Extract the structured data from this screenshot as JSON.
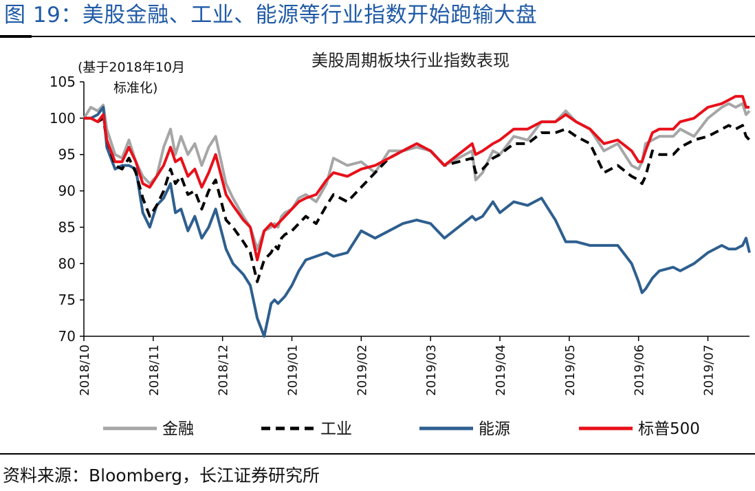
{
  "figure_title": "图 19：美股金融、工业、能源等行业指数开始跑输大盘",
  "source": "资料来源：Bloomberg，长江证券研究所",
  "colors": {
    "title": "#1f5aa6",
    "financials": "#a6a6a6",
    "industrials": "#000000",
    "energy": "#2e5f8f",
    "sp500": "#e8101a"
  },
  "chart_data": {
    "type": "line",
    "title": "美股周期板块行业指数表现",
    "note_line1": "(基于2018年10月",
    "note_line2": "标准化)",
    "xlabel": "",
    "ylabel": "",
    "ylim": [
      70,
      105
    ],
    "yticks": [
      "70",
      "75",
      "80",
      "85",
      "90",
      "95",
      "100",
      "105"
    ],
    "xlim": [
      0,
      9.6
    ],
    "xticks": [
      "2018/10",
      "2018/11",
      "2018/12",
      "2019/01",
      "2019/02",
      "2019/03",
      "2019/04",
      "2019/05",
      "2019/06",
      "2019/07"
    ],
    "series": [
      {
        "name": "金融",
        "style": "solid",
        "x": [
          0,
          0.1,
          0.2,
          0.28,
          0.33,
          0.45,
          0.55,
          0.65,
          0.75,
          0.85,
          0.95,
          1.05,
          1.15,
          1.25,
          1.32,
          1.4,
          1.5,
          1.6,
          1.7,
          1.8,
          1.9,
          2.05,
          2.15,
          2.3,
          2.4,
          2.5,
          2.6,
          2.7,
          2.75,
          2.8,
          2.85,
          2.9,
          3.0,
          3.1,
          3.2,
          3.35,
          3.5,
          3.6,
          3.8,
          4.0,
          4.2,
          4.4,
          4.6,
          4.8,
          5.0,
          5.2,
          5.4,
          5.6,
          5.65,
          5.75,
          5.9,
          6.0,
          6.2,
          6.4,
          6.6,
          6.8,
          6.95,
          7.1,
          7.3,
          7.5,
          7.7,
          7.9,
          8.0,
          8.05,
          8.1,
          8.2,
          8.3,
          8.5,
          8.6,
          8.8,
          9.0,
          9.2,
          9.3,
          9.4,
          9.5,
          9.55,
          9.6
        ],
        "values": [
          100,
          101.5,
          101,
          101.8,
          98.5,
          95,
          94.5,
          97,
          94,
          92,
          91,
          92,
          96,
          98.5,
          95,
          97.5,
          95,
          96.5,
          93.5,
          96,
          97.5,
          91,
          89,
          86.5,
          85,
          82,
          84.5,
          85,
          85.5,
          85,
          86.5,
          87,
          87.5,
          89,
          89.5,
          88.5,
          91,
          94.5,
          93.5,
          94,
          92.5,
          95.5,
          95.5,
          96,
          95.5,
          93.5,
          94.5,
          95.5,
          91.5,
          92.5,
          95.5,
          95,
          97.5,
          97,
          99.5,
          99.5,
          101,
          99.5,
          98.5,
          95.5,
          96.5,
          93.5,
          93,
          94,
          96.5,
          97,
          97.5,
          97.5,
          98.5,
          97.5,
          100,
          101.5,
          102,
          101.5,
          102,
          100.5,
          101
        ]
      },
      {
        "name": "工业",
        "style": "dashed",
        "x": [
          0,
          0.1,
          0.2,
          0.28,
          0.33,
          0.45,
          0.55,
          0.65,
          0.75,
          0.85,
          0.95,
          1.05,
          1.15,
          1.25,
          1.32,
          1.4,
          1.5,
          1.6,
          1.7,
          1.8,
          1.9,
          2.05,
          2.15,
          2.3,
          2.4,
          2.5,
          2.6,
          2.7,
          2.75,
          2.8,
          2.85,
          2.9,
          3.0,
          3.1,
          3.2,
          3.35,
          3.5,
          3.6,
          3.8,
          4.0,
          4.2,
          4.4,
          4.6,
          4.8,
          5.0,
          5.2,
          5.4,
          5.6,
          5.65,
          5.75,
          5.9,
          6.0,
          6.2,
          6.4,
          6.6,
          6.8,
          6.95,
          7.1,
          7.3,
          7.5,
          7.7,
          7.9,
          8.0,
          8.05,
          8.1,
          8.2,
          8.3,
          8.5,
          8.6,
          8.8,
          9.0,
          9.2,
          9.3,
          9.4,
          9.5,
          9.55,
          9.6
        ],
        "values": [
          100,
          100,
          99.5,
          100,
          97,
          93.5,
          93,
          94.5,
          92.5,
          89,
          86.5,
          88,
          90,
          93,
          91,
          92,
          89.5,
          90,
          87.5,
          90,
          91.5,
          86,
          85,
          83,
          81.5,
          77.5,
          80.5,
          81.5,
          82.5,
          82,
          83.5,
          84,
          84.5,
          85.5,
          86.5,
          85.5,
          88,
          89.5,
          88.5,
          90.5,
          92.5,
          94.5,
          95.5,
          96.5,
          95.5,
          93.5,
          94,
          94.5,
          92.5,
          93,
          94.5,
          95,
          96.5,
          96.5,
          98,
          98,
          98.5,
          97.5,
          96.5,
          92.5,
          93.5,
          92,
          91.5,
          91,
          92,
          95.5,
          95,
          95,
          96,
          97,
          97.5,
          98.5,
          99,
          98.5,
          99,
          97.5,
          97
        ]
      },
      {
        "name": "能源",
        "style": "solid",
        "x": [
          0,
          0.1,
          0.2,
          0.28,
          0.33,
          0.45,
          0.55,
          0.65,
          0.75,
          0.85,
          0.95,
          1.05,
          1.15,
          1.25,
          1.32,
          1.4,
          1.5,
          1.6,
          1.7,
          1.8,
          1.9,
          2.05,
          2.15,
          2.3,
          2.4,
          2.5,
          2.6,
          2.7,
          2.75,
          2.8,
          2.85,
          2.9,
          3.0,
          3.1,
          3.2,
          3.35,
          3.5,
          3.6,
          3.8,
          4.0,
          4.2,
          4.4,
          4.6,
          4.8,
          5.0,
          5.2,
          5.4,
          5.6,
          5.65,
          5.75,
          5.9,
          6.0,
          6.2,
          6.4,
          6.6,
          6.8,
          6.95,
          7.1,
          7.3,
          7.5,
          7.7,
          7.9,
          8.0,
          8.05,
          8.1,
          8.2,
          8.3,
          8.5,
          8.6,
          8.8,
          9.0,
          9.2,
          9.3,
          9.4,
          9.5,
          9.55,
          9.6
        ],
        "values": [
          100,
          100,
          100.5,
          101.5,
          96,
          93,
          93.5,
          93.5,
          93,
          87,
          85,
          88,
          89,
          91,
          87,
          87.5,
          84.5,
          86.5,
          83.5,
          85,
          87.5,
          82,
          80,
          78.5,
          77,
          72.5,
          70,
          74.5,
          75,
          74.5,
          75,
          75.5,
          77,
          79,
          80.5,
          81,
          81.5,
          81,
          81.5,
          84.5,
          83.5,
          84.5,
          85.5,
          86,
          85.5,
          83.5,
          85,
          86.5,
          86,
          86.5,
          88.5,
          87,
          88.5,
          88,
          89,
          86,
          83,
          83,
          82.5,
          82.5,
          82.5,
          80,
          77.5,
          76,
          76.5,
          78,
          79,
          79.5,
          79,
          80,
          81.5,
          82.5,
          82,
          82,
          82.5,
          83.5,
          81.5
        ]
      },
      {
        "name": "标普500",
        "style": "solid",
        "x": [
          0,
          0.1,
          0.2,
          0.28,
          0.33,
          0.45,
          0.55,
          0.65,
          0.75,
          0.85,
          0.95,
          1.05,
          1.15,
          1.25,
          1.32,
          1.4,
          1.5,
          1.6,
          1.7,
          1.8,
          1.9,
          2.05,
          2.15,
          2.3,
          2.4,
          2.5,
          2.6,
          2.7,
          2.75,
          2.8,
          2.85,
          2.9,
          3.0,
          3.1,
          3.2,
          3.35,
          3.5,
          3.6,
          3.8,
          4.0,
          4.2,
          4.4,
          4.6,
          4.8,
          5.0,
          5.2,
          5.4,
          5.6,
          5.65,
          5.75,
          5.9,
          6.0,
          6.2,
          6.4,
          6.6,
          6.8,
          6.95,
          7.1,
          7.3,
          7.5,
          7.7,
          7.9,
          8.0,
          8.05,
          8.1,
          8.2,
          8.3,
          8.5,
          8.6,
          8.8,
          9.0,
          9.2,
          9.3,
          9.4,
          9.5,
          9.55,
          9.6
        ],
        "values": [
          100,
          100,
          99.5,
          100.5,
          97,
          94,
          94,
          96,
          94,
          91,
          90.5,
          92,
          93.5,
          96,
          94,
          94.5,
          92,
          93,
          90.5,
          92.5,
          95,
          89.5,
          88,
          86,
          85,
          80.5,
          84.5,
          85.5,
          85,
          85.5,
          86,
          86.5,
          87.5,
          88.5,
          89,
          89.5,
          91.5,
          92.5,
          92,
          93,
          93.5,
          94.5,
          95.5,
          96.5,
          95.5,
          93.5,
          95,
          96.5,
          95,
          95.5,
          96.5,
          97,
          98.5,
          98.5,
          99.5,
          99.5,
          100.5,
          99.5,
          98.5,
          96.5,
          97,
          95.5,
          94,
          94,
          95.5,
          98,
          98.5,
          98.5,
          99.5,
          100,
          101.5,
          102,
          102.5,
          103,
          103,
          101.5,
          101.5
        ]
      }
    ]
  }
}
